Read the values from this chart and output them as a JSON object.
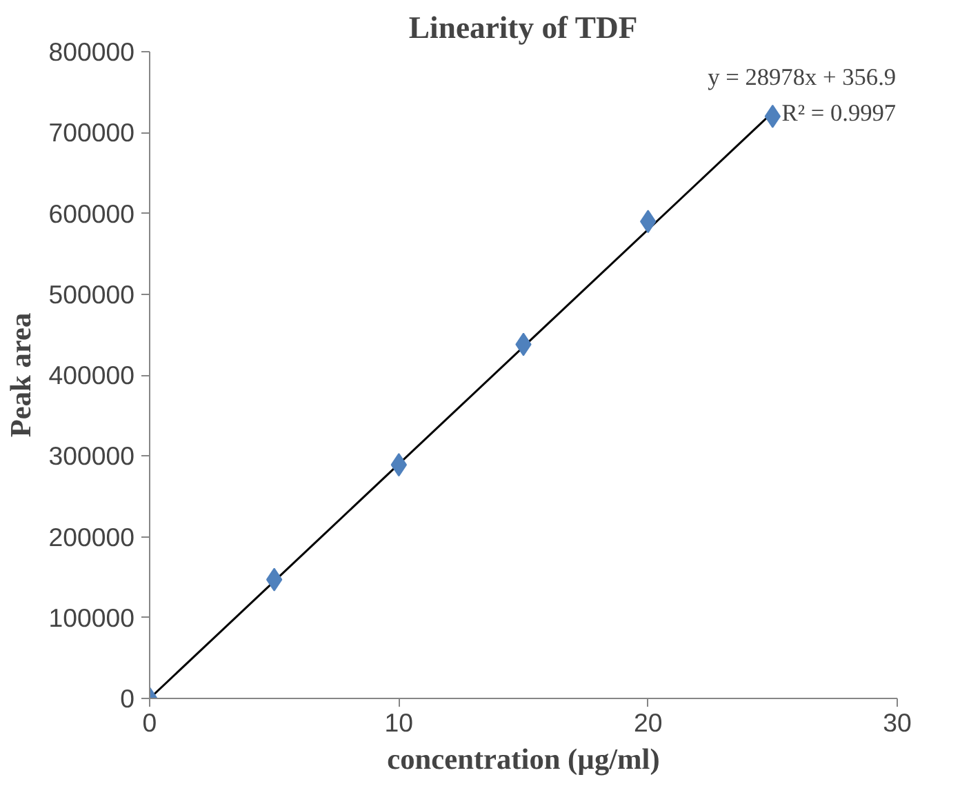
{
  "chart_data": {
    "type": "scatter",
    "title": "Linearity of TDF",
    "xlabel": "concentration (µg/ml)",
    "ylabel": "Peak area",
    "x": [
      0,
      5,
      10,
      15,
      20,
      25
    ],
    "series": [
      {
        "color": "#4f81bd",
        "values": [
          0,
          147000,
          289000,
          438000,
          590000,
          720000
        ],
        "marker": "diamond"
      },
      {
        "type": "line",
        "color": "#000000",
        "x": [
          0,
          25
        ],
        "values": [
          0,
          725000
        ],
        "marker": "none",
        "line_style": "solid"
      }
    ],
    "xlim": [
      0,
      30
    ],
    "xticks": [
      0,
      10,
      20,
      30
    ],
    "ylim": [
      0,
      800000
    ],
    "yticks": [
      0,
      100000,
      200000,
      300000,
      400000,
      500000,
      600000,
      700000,
      800000
    ],
    "annotations": [
      "y = 28978x + 356.9",
      "R² = 0.9997"
    ],
    "grid": false
  }
}
